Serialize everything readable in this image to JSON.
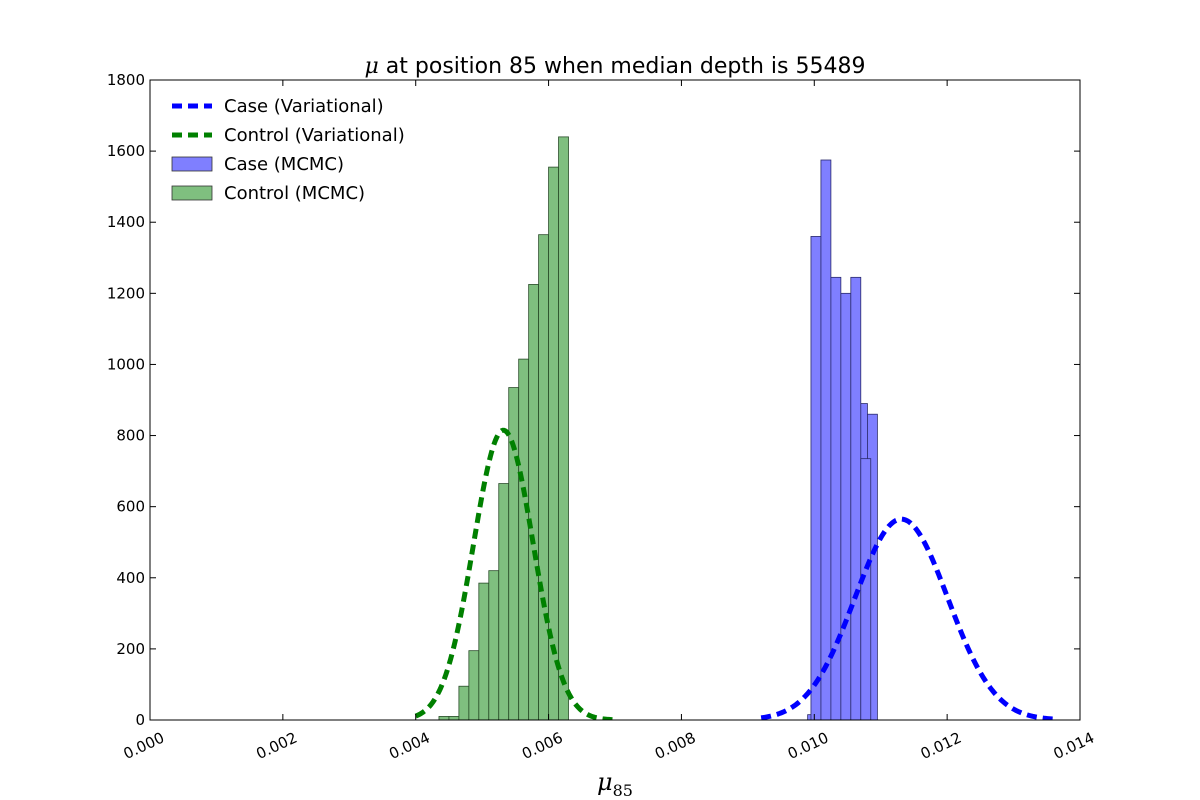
{
  "chart_data": {
    "type": "histogram",
    "title_symbol": "μ",
    "title_rest": " at position 85 when median depth is 55489",
    "xlabel_symbol": "μ",
    "xlabel_sub": "85",
    "xlim": [
      0.0,
      0.014
    ],
    "ylim": [
      0,
      1800
    ],
    "xticks": [
      0.0,
      0.002,
      0.004,
      0.006,
      0.008,
      0.01,
      0.012,
      0.014
    ],
    "xtick_labels": [
      "0.000",
      "0.002",
      "0.004",
      "0.006",
      "0.008",
      "0.010",
      "0.012",
      "0.014"
    ],
    "yticks": [
      0,
      200,
      400,
      600,
      800,
      1000,
      1200,
      1400,
      1600,
      1800
    ],
    "ytick_labels": [
      "0",
      "200",
      "400",
      "600",
      "800",
      "1000",
      "1200",
      "1400",
      "1600",
      "1800"
    ],
    "legend_position": "upper-left",
    "legend": [
      {
        "label": "Case (Variational)",
        "kind": "dashed-line",
        "color": "#0000ff"
      },
      {
        "label": "Control (Variational)",
        "kind": "dashed-line",
        "color": "#008000"
      },
      {
        "label": "Case (MCMC)",
        "kind": "patch",
        "color": "#7f7fff"
      },
      {
        "label": "Control (MCMC)",
        "kind": "patch",
        "color": "#7fbf7f"
      }
    ],
    "series": [
      {
        "name": "Control (MCMC)",
        "kind": "histogram",
        "color": "#7fbf7f",
        "edge": "#2a4d2a",
        "bin_width": 0.00015,
        "bin_starts": [
          0.00435,
          0.0045,
          0.00465,
          0.0048,
          0.00495,
          0.0051,
          0.00525,
          0.0054,
          0.00555,
          0.0057,
          0.00585,
          0.006,
          0.00615
        ],
        "counts": [
          10,
          10,
          95,
          195,
          385,
          420,
          665,
          935,
          1015,
          1225,
          1365,
          1555,
          1640
        ]
      },
      {
        "name": "Case (MCMC)",
        "kind": "histogram",
        "color": "#7f7fff",
        "edge": "#2a2a6a",
        "bin_width": 0.00015,
        "bin_starts": [
          0.0099,
          0.01005,
          0.0102,
          0.01035,
          0.0105,
          0.01065,
          0.0108,
          0.00995,
          0.0101,
          0.01025,
          0.0104,
          0.01055,
          0.0107
        ],
        "counts": [
          15,
          95,
          200,
          280,
          540,
          890,
          860,
          1360,
          1575,
          1245,
          1200,
          1245,
          735
        ]
      },
      {
        "name": "Control (Variational)",
        "kind": "gaussian",
        "color": "#008000",
        "mean": 0.00532,
        "sd": 0.00045,
        "peak": 815,
        "x_range": [
          0.004,
          0.007
        ]
      },
      {
        "name": "Case (Variational)",
        "kind": "gaussian",
        "color": "#0000ff",
        "mean": 0.01131,
        "sd": 0.0007,
        "peak": 565,
        "x_range": [
          0.0092,
          0.01365
        ]
      }
    ]
  }
}
